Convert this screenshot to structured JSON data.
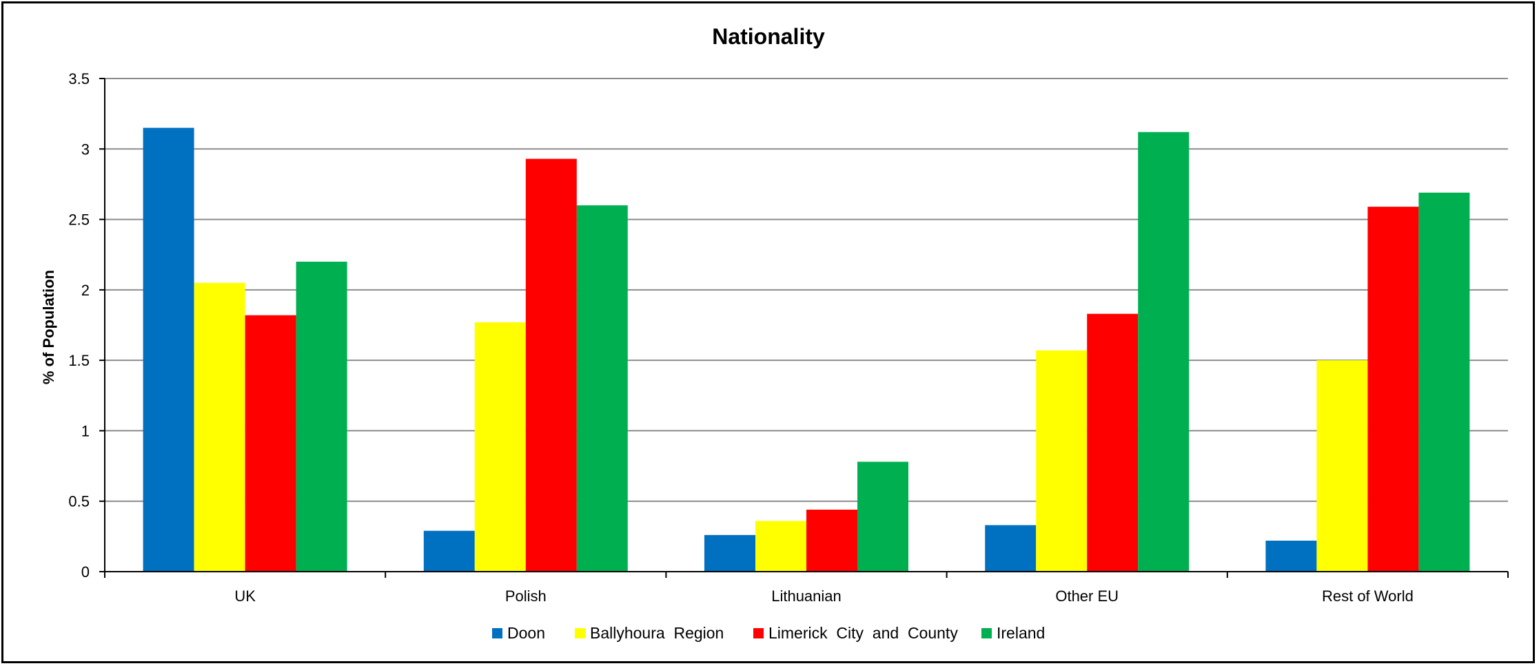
{
  "chart_data": {
    "type": "bar",
    "title": "Nationality",
    "xlabel": "",
    "ylabel": "% of Population",
    "ylim": [
      0,
      3.5
    ],
    "yticks": [
      "0",
      "0.5",
      "1",
      "1.5",
      "2",
      "2.5",
      "3",
      "3.5"
    ],
    "categories": [
      "UK",
      "Polish",
      "Lithuanian",
      "Other EU",
      "Rest of World"
    ],
    "series": [
      {
        "name": "Doon",
        "color": "#0070C0",
        "values": [
          3.15,
          0.29,
          0.26,
          0.33,
          0.22
        ]
      },
      {
        "name": "Ballyhoura  Region",
        "color": "#FFFF00",
        "values": [
          2.05,
          1.77,
          0.36,
          1.57,
          1.5
        ]
      },
      {
        "name": "Limerick  City  and  County",
        "color": "#FF0000",
        "values": [
          1.82,
          2.93,
          0.44,
          1.83,
          2.59
        ]
      },
      {
        "name": "Ireland",
        "color": "#00B050",
        "values": [
          2.2,
          2.6,
          0.78,
          3.12,
          2.69
        ]
      }
    ],
    "grid": true,
    "legend_position": "bottom"
  }
}
